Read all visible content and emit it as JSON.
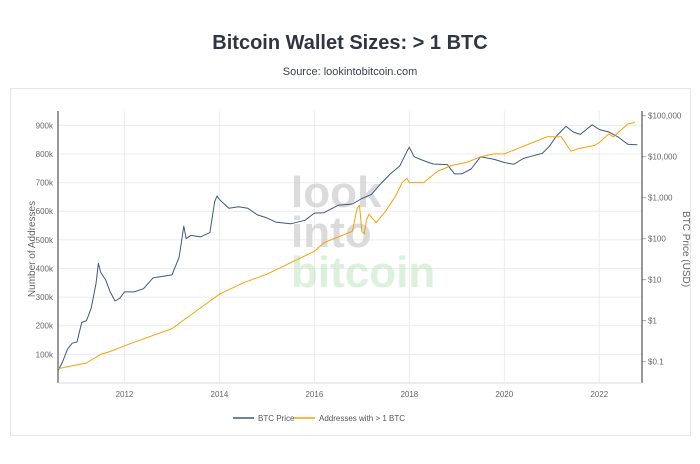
{
  "page": {
    "title": "Bitcoin Wallet Sizes: > 1 BTC",
    "subtitle": "Source: lookintobitcoin.com"
  },
  "watermark": [
    "look",
    "into",
    "bitcoin"
  ],
  "colors": {
    "price": "#3d5a80",
    "addresses": "#f5a20a",
    "grid": "#ececec",
    "axis_text": "#666666"
  },
  "chart_data": {
    "type": "line",
    "xlabel": "",
    "x_ticks": [
      "2012",
      "2014",
      "2016",
      "2018",
      "2020",
      "2022"
    ],
    "x_tick_years": [
      2012,
      2014,
      2016,
      2018,
      2020,
      2022
    ],
    "xlim": [
      2010.6,
      2022.9
    ],
    "y_left": {
      "label": "Number of Addresses",
      "ticks": [
        "100k",
        "200k",
        "300k",
        "400k",
        "500k",
        "600k",
        "700k",
        "800k",
        "900k"
      ],
      "tick_values": [
        100000,
        200000,
        300000,
        400000,
        500000,
        600000,
        700000,
        800000,
        900000
      ],
      "range": [
        0,
        950000
      ]
    },
    "y_right": {
      "label": "BTC Price (USD)",
      "scale": "log",
      "ticks": [
        "$0.1",
        "$1",
        "$10",
        "$100",
        "$1,000",
        "$10,000",
        "$100,000"
      ],
      "tick_values": [
        0.1,
        1,
        10,
        100,
        1000,
        10000,
        100000
      ],
      "range": [
        0.03,
        130000
      ]
    },
    "legend": {
      "placement": "bottom-center"
    },
    "series": [
      {
        "name": "BTC Price",
        "axis": "right",
        "color": "#3d5a80",
        "x": [
          2010.6,
          2010.7,
          2010.8,
          2010.9,
          2011.0,
          2011.1,
          2011.2,
          2011.3,
          2011.4,
          2011.45,
          2011.5,
          2011.6,
          2011.7,
          2011.8,
          2011.9,
          2012.0,
          2012.2,
          2012.4,
          2012.6,
          2012.8,
          2013.0,
          2013.15,
          2013.25,
          2013.3,
          2013.4,
          2013.6,
          2013.8,
          2013.9,
          2013.95,
          2014.0,
          2014.2,
          2014.4,
          2014.6,
          2014.8,
          2015.0,
          2015.2,
          2015.5,
          2015.8,
          2016.0,
          2016.2,
          2016.5,
          2016.8,
          2017.0,
          2017.2,
          2017.4,
          2017.6,
          2017.8,
          2017.95,
          2018.0,
          2018.1,
          2018.3,
          2018.5,
          2018.8,
          2018.95,
          2019.1,
          2019.3,
          2019.5,
          2019.8,
          2020.0,
          2020.2,
          2020.4,
          2020.6,
          2020.8,
          2020.95,
          2021.1,
          2021.3,
          2021.45,
          2021.6,
          2021.85,
          2022.0,
          2022.2,
          2022.4,
          2022.6,
          2022.8
        ],
        "y": [
          0.06,
          0.1,
          0.2,
          0.28,
          0.3,
          0.9,
          1.0,
          2.0,
          8,
          25,
          15,
          10,
          5,
          3,
          3.5,
          5,
          5,
          6,
          11,
          12,
          13,
          35,
          200,
          100,
          120,
          110,
          140,
          800,
          1100,
          900,
          550,
          600,
          550,
          380,
          320,
          250,
          230,
          280,
          420,
          430,
          650,
          700,
          950,
          1200,
          2200,
          3800,
          6000,
          13500,
          17000,
          10000,
          8000,
          6600,
          6400,
          3800,
          3800,
          5000,
          10000,
          8500,
          7200,
          6500,
          9000,
          10500,
          12000,
          18000,
          32000,
          55000,
          40000,
          35000,
          60000,
          46000,
          40000,
          30000,
          20000,
          19500
        ]
      },
      {
        "name": "Addresses with > 1 BTC",
        "axis": "left",
        "color": "#f5a20a",
        "x": [
          2010.6,
          2010.9,
          2011.2,
          2011.5,
          2011.7,
          2012.0,
          2012.5,
          2013.0,
          2013.5,
          2014.0,
          2014.5,
          2015.0,
          2015.5,
          2016.0,
          2016.2,
          2016.5,
          2016.8,
          2016.9,
          2016.95,
          2017.0,
          2017.05,
          2017.1,
          2017.15,
          2017.3,
          2017.5,
          2017.7,
          2017.85,
          2017.95,
          2018.0,
          2018.3,
          2018.6,
          2018.9,
          2019.2,
          2019.5,
          2019.8,
          2020.0,
          2020.3,
          2020.6,
          2020.9,
          2021.2,
          2021.4,
          2021.6,
          2021.9,
          2022.0,
          2022.2,
          2022.3,
          2022.5,
          2022.6,
          2022.75
        ],
        "y": [
          50000,
          60000,
          70000,
          100000,
          110000,
          130000,
          160000,
          190000,
          250000,
          310000,
          350000,
          380000,
          420000,
          460000,
          490000,
          510000,
          530000,
          610000,
          620000,
          530000,
          520000,
          570000,
          590000,
          560000,
          600000,
          650000,
          700000,
          715000,
          700000,
          700000,
          740000,
          760000,
          770000,
          790000,
          800000,
          800000,
          820000,
          840000,
          860000,
          860000,
          810000,
          820000,
          830000,
          840000,
          870000,
          860000,
          890000,
          905000,
          910000
        ]
      }
    ]
  }
}
